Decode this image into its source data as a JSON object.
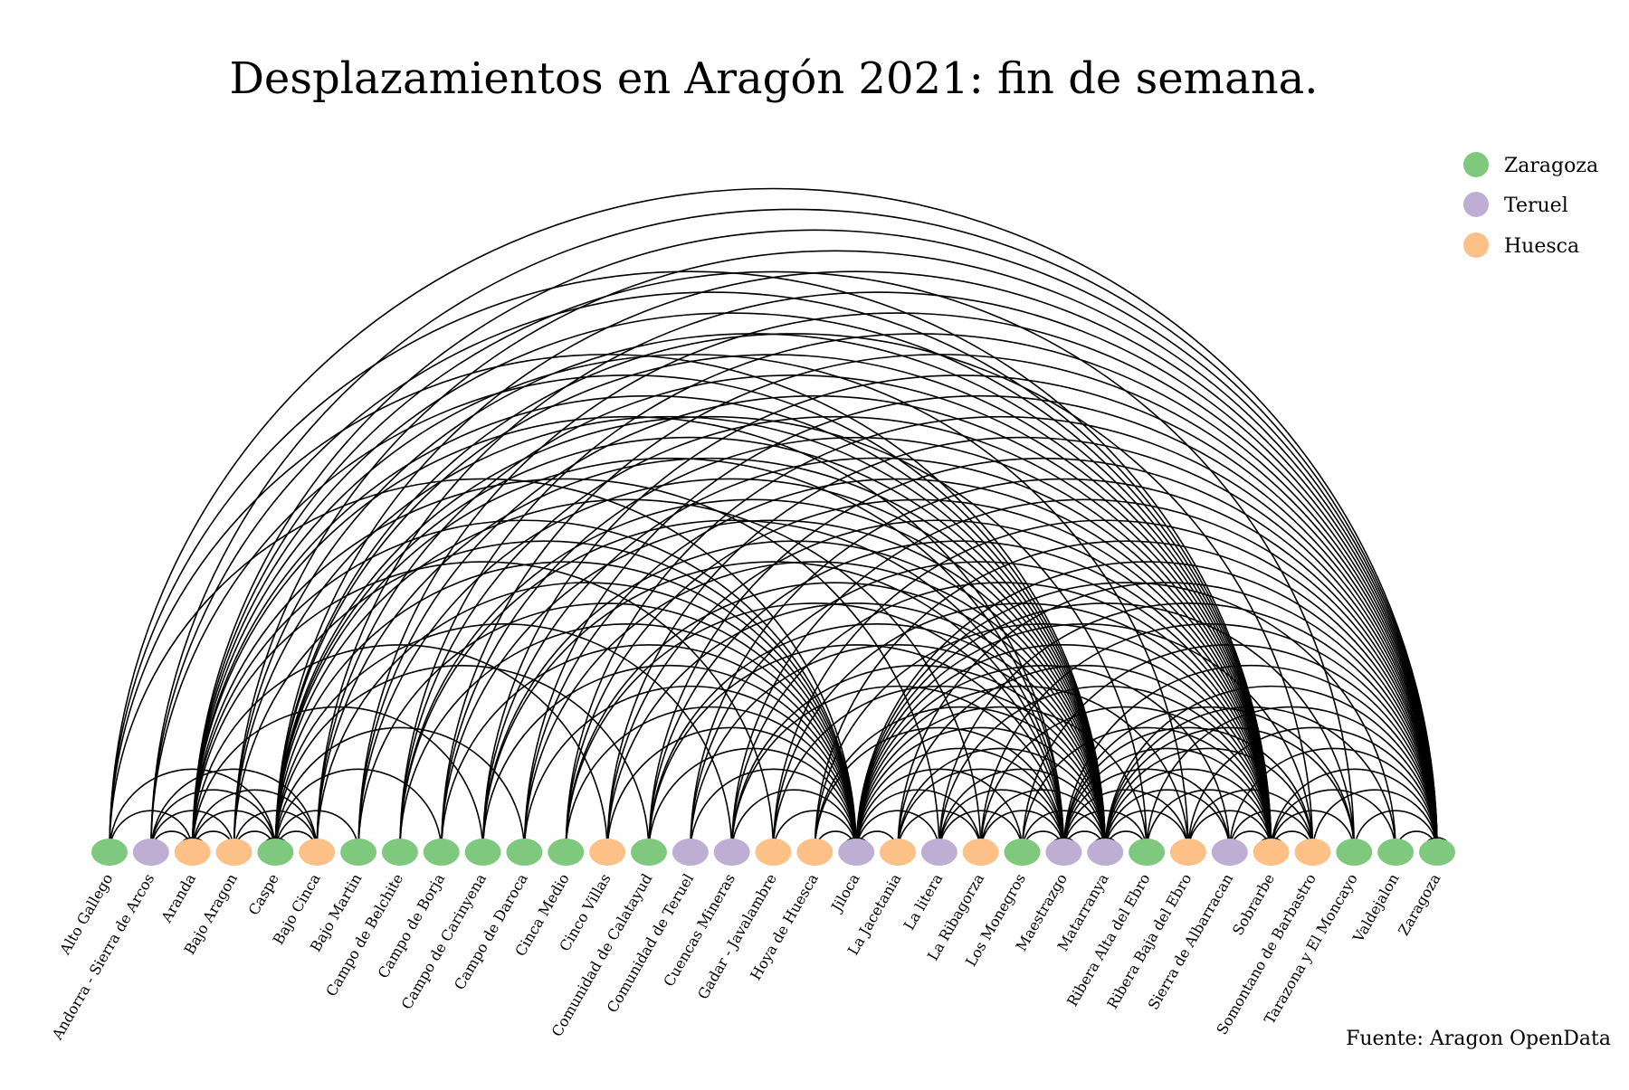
{
  "title": "Desplazamientos en Aragón 2021: fin de semana.",
  "source": "Fuente: Aragon OpenData",
  "legend": [
    {
      "label": "Zaragoza",
      "color": "#7fc97f"
    },
    {
      "label": "Teruel",
      "color": "#beaed4"
    },
    {
      "label": "Huesca",
      "color": "#fdc086"
    }
  ],
  "nodes": [
    {
      "name": "Alto Gallego",
      "province": "Zaragoza"
    },
    {
      "name": "Andorra - Sierra de Arcos",
      "province": "Teruel"
    },
    {
      "name": "Aranda",
      "province": "Huesca"
    },
    {
      "name": "Bajo Aragon",
      "province": "Huesca"
    },
    {
      "name": "Caspe",
      "province": "Zaragoza"
    },
    {
      "name": "Bajo Cinca",
      "province": "Huesca"
    },
    {
      "name": "Bajo Martin",
      "province": "Zaragoza"
    },
    {
      "name": "Campo de Belchite",
      "province": "Zaragoza"
    },
    {
      "name": "Campo de Borja",
      "province": "Zaragoza"
    },
    {
      "name": "Campo de Carinyena",
      "province": "Zaragoza"
    },
    {
      "name": "Campo de Daroca",
      "province": "Zaragoza"
    },
    {
      "name": "Cinca Medio",
      "province": "Zaragoza"
    },
    {
      "name": "Cinco Villas",
      "province": "Huesca"
    },
    {
      "name": "Comunidad de Calatayud",
      "province": "Zaragoza"
    },
    {
      "name": "Comunidad de Teruel",
      "province": "Teruel"
    },
    {
      "name": "Cuencas Mineras",
      "province": "Teruel"
    },
    {
      "name": "Gadar - Javalambre",
      "province": "Huesca"
    },
    {
      "name": "Hoya de Huesca",
      "province": "Huesca"
    },
    {
      "name": "Jiloca",
      "province": "Teruel"
    },
    {
      "name": "La Jacetania",
      "province": "Huesca"
    },
    {
      "name": "La litera",
      "province": "Teruel"
    },
    {
      "name": "La Ribagorza",
      "province": "Huesca"
    },
    {
      "name": "Los Monegros",
      "province": "Zaragoza"
    },
    {
      "name": "Maestrazgo",
      "province": "Teruel"
    },
    {
      "name": "Matarranya",
      "province": "Teruel"
    },
    {
      "name": "Ribera Alta del Ebro",
      "province": "Zaragoza"
    },
    {
      "name": "Ribera Baja del Ebro",
      "province": "Huesca"
    },
    {
      "name": "Sierra de Albarracan",
      "province": "Teruel"
    },
    {
      "name": "Sobrarbe",
      "province": "Huesca"
    },
    {
      "name": "Somontano de Barbastro",
      "province": "Huesca"
    },
    {
      "name": "Tarazona y El Moncayo",
      "province": "Zaragoza"
    },
    {
      "name": "Valdejalon",
      "province": "Zaragoza"
    },
    {
      "name": "Zaragoza",
      "province": "Zaragoza"
    }
  ],
  "hubs": [
    2,
    4,
    18,
    23,
    24,
    28,
    32
  ],
  "links": [
    [
      0,
      32
    ],
    [
      0,
      28
    ],
    [
      0,
      24
    ],
    [
      0,
      18
    ],
    [
      0,
      4
    ],
    [
      0,
      2
    ],
    [
      1,
      32
    ],
    [
      1,
      28
    ],
    [
      1,
      24
    ],
    [
      1,
      4
    ],
    [
      1,
      2
    ],
    [
      2,
      32
    ],
    [
      2,
      28
    ],
    [
      2,
      24
    ],
    [
      2,
      23
    ],
    [
      2,
      18
    ],
    [
      2,
      4
    ],
    [
      2,
      3
    ],
    [
      2,
      5
    ],
    [
      2,
      9
    ],
    [
      2,
      12
    ],
    [
      2,
      16
    ],
    [
      2,
      20
    ],
    [
      2,
      26
    ],
    [
      2,
      30
    ],
    [
      3,
      32
    ],
    [
      3,
      28
    ],
    [
      3,
      24
    ],
    [
      3,
      18
    ],
    [
      3,
      4
    ],
    [
      4,
      32
    ],
    [
      4,
      28
    ],
    [
      4,
      24
    ],
    [
      4,
      23
    ],
    [
      4,
      18
    ],
    [
      4,
      5
    ],
    [
      4,
      6
    ],
    [
      4,
      8
    ],
    [
      4,
      10
    ],
    [
      4,
      13
    ],
    [
      4,
      15
    ],
    [
      4,
      21
    ],
    [
      4,
      25
    ],
    [
      4,
      29
    ],
    [
      5,
      32
    ],
    [
      5,
      28
    ],
    [
      5,
      24
    ],
    [
      5,
      18
    ],
    [
      6,
      32
    ],
    [
      6,
      28
    ],
    [
      6,
      24
    ],
    [
      6,
      18
    ],
    [
      7,
      32
    ],
    [
      7,
      28
    ],
    [
      7,
      24
    ],
    [
      7,
      18
    ],
    [
      7,
      23
    ],
    [
      8,
      32
    ],
    [
      8,
      28
    ],
    [
      8,
      24
    ],
    [
      8,
      18
    ],
    [
      9,
      32
    ],
    [
      9,
      28
    ],
    [
      9,
      24
    ],
    [
      9,
      18
    ],
    [
      9,
      23
    ],
    [
      10,
      32
    ],
    [
      10,
      28
    ],
    [
      10,
      24
    ],
    [
      10,
      18
    ],
    [
      11,
      32
    ],
    [
      11,
      28
    ],
    [
      11,
      24
    ],
    [
      11,
      18
    ],
    [
      11,
      23
    ],
    [
      12,
      32
    ],
    [
      12,
      28
    ],
    [
      12,
      24
    ],
    [
      12,
      18
    ],
    [
      13,
      32
    ],
    [
      13,
      28
    ],
    [
      13,
      24
    ],
    [
      13,
      18
    ],
    [
      13,
      23
    ],
    [
      14,
      32
    ],
    [
      14,
      28
    ],
    [
      14,
      24
    ],
    [
      14,
      18
    ],
    [
      15,
      32
    ],
    [
      15,
      28
    ],
    [
      15,
      24
    ],
    [
      15,
      18
    ],
    [
      15,
      23
    ],
    [
      16,
      32
    ],
    [
      16,
      28
    ],
    [
      16,
      24
    ],
    [
      16,
      18
    ],
    [
      17,
      32
    ],
    [
      17,
      28
    ],
    [
      17,
      24
    ],
    [
      17,
      18
    ],
    [
      17,
      23
    ],
    [
      18,
      32
    ],
    [
      18,
      28
    ],
    [
      18,
      24
    ],
    [
      18,
      23
    ],
    [
      18,
      19
    ],
    [
      18,
      20
    ],
    [
      18,
      21
    ],
    [
      18,
      22
    ],
    [
      18,
      25
    ],
    [
      18,
      26
    ],
    [
      18,
      27
    ],
    [
      18,
      29
    ],
    [
      18,
      30
    ],
    [
      18,
      31
    ],
    [
      19,
      32
    ],
    [
      19,
      28
    ],
    [
      19,
      24
    ],
    [
      19,
      23
    ],
    [
      20,
      32
    ],
    [
      20,
      28
    ],
    [
      20,
      24
    ],
    [
      20,
      23
    ],
    [
      21,
      32
    ],
    [
      21,
      28
    ],
    [
      21,
      24
    ],
    [
      21,
      23
    ],
    [
      22,
      32
    ],
    [
      22,
      28
    ],
    [
      22,
      24
    ],
    [
      22,
      23
    ],
    [
      23,
      32
    ],
    [
      23,
      28
    ],
    [
      23,
      24
    ],
    [
      23,
      25
    ],
    [
      23,
      26
    ],
    [
      23,
      27
    ],
    [
      23,
      29
    ],
    [
      23,
      30
    ],
    [
      24,
      32
    ],
    [
      24,
      28
    ],
    [
      24,
      25
    ],
    [
      24,
      26
    ],
    [
      24,
      27
    ],
    [
      24,
      29
    ],
    [
      24,
      30
    ],
    [
      24,
      31
    ],
    [
      25,
      32
    ],
    [
      25,
      28
    ],
    [
      26,
      32
    ],
    [
      26,
      28
    ],
    [
      27,
      32
    ],
    [
      27,
      28
    ],
    [
      28,
      32
    ],
    [
      28,
      29
    ],
    [
      28,
      30
    ],
    [
      28,
      31
    ],
    [
      29,
      32
    ],
    [
      30,
      32
    ],
    [
      31,
      32
    ],
    [
      1,
      3
    ],
    [
      3,
      5
    ],
    [
      1,
      5
    ],
    [
      20,
      22
    ],
    [
      27,
      29
    ],
    [
      26,
      29
    ],
    [
      19,
      21
    ]
  ]
}
